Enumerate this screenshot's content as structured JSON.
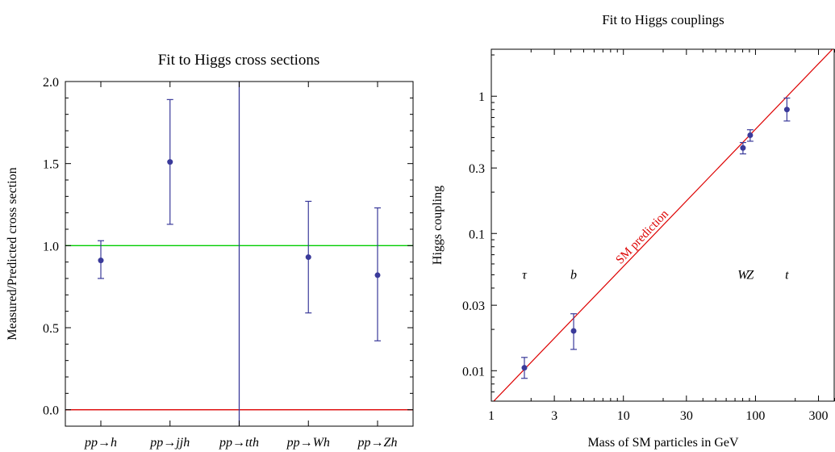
{
  "colors": {
    "marker": "#3a3a9a",
    "green_line": "#00cc00",
    "red_line": "#dd0000",
    "blue_line": "#3a3a9a",
    "frame": "#000000"
  },
  "chart_data": [
    {
      "type": "scatter",
      "title": "Fit to Higgs cross sections",
      "xlabel": "",
      "ylabel": "Measured/Predicted cross section",
      "categories": [
        "pp→h",
        "pp→jjh",
        "pp→tth",
        "pp→Wh",
        "pp→Zh"
      ],
      "ylim": [
        -0.1,
        2.0
      ],
      "yticks": [
        0.0,
        0.5,
        1.0,
        1.5,
        2.0
      ],
      "ytick_labels": [
        "0.0",
        "0.5",
        "1.0",
        "1.5",
        "2.0"
      ],
      "points": [
        {
          "category": "pp→h",
          "value": 0.91,
          "low": 0.8,
          "high": 1.03
        },
        {
          "category": "pp→jjh",
          "value": 1.51,
          "low": 1.13,
          "high": 1.89
        },
        {
          "category": "pp→Wh",
          "value": 0.93,
          "low": 0.59,
          "high": 1.27
        },
        {
          "category": "pp→Zh",
          "value": 0.82,
          "low": 0.42,
          "high": 1.23
        }
      ],
      "reference_lines": [
        {
          "y": 1.0,
          "color": "green"
        },
        {
          "y": 0.0,
          "color": "red"
        }
      ],
      "vertical_line_category": "pp→tth",
      "grid": false
    },
    {
      "type": "scatter",
      "title": "Fit to Higgs couplings",
      "xlabel": "Mass of SM particles in GeV",
      "ylabel": "Higgs coupling",
      "xscale": "log",
      "yscale": "log",
      "xlim": [
        1,
        400
      ],
      "ylim": [
        0.006,
        2.2
      ],
      "xticks": [
        1,
        3,
        10,
        30,
        100,
        300
      ],
      "xtick_labels": [
        "1",
        "3",
        "10",
        "30",
        "100",
        "300"
      ],
      "yticks": [
        0.01,
        0.03,
        0.1,
        0.3,
        1
      ],
      "ytick_labels": [
        "0.01",
        "0.03",
        "0.1",
        "0.3",
        "1"
      ],
      "points": [
        {
          "label": "τ",
          "x": 1.78,
          "y": 0.0105,
          "low": 0.0088,
          "high": 0.0125
        },
        {
          "label": "b",
          "x": 4.2,
          "y": 0.0195,
          "low": 0.0143,
          "high": 0.026
        },
        {
          "label": "W",
          "x": 80.4,
          "y": 0.42,
          "low": 0.38,
          "high": 0.46
        },
        {
          "label": "Z",
          "x": 91.2,
          "y": 0.52,
          "low": 0.47,
          "high": 0.57
        },
        {
          "label": "t",
          "x": 173,
          "y": 0.8,
          "low": 0.66,
          "high": 0.97
        }
      ],
      "particle_label_y": 0.05,
      "line": {
        "name": "SM prediction",
        "color": "red",
        "x": [
          1,
          400
        ],
        "y": [
          0.00575,
          2.3
        ]
      },
      "grid": false
    }
  ]
}
